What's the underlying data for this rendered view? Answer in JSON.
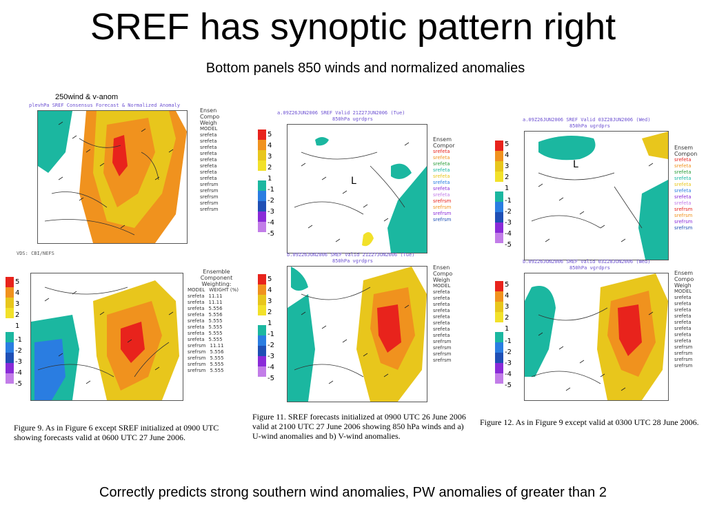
{
  "slide": {
    "title": "SREF has synoptic pattern right",
    "subtitle": "Bottom panels 850 winds and normalized anomalies",
    "footer": "Correctly predicts strong southern wind anomalies, PW anomalies of greater than 2"
  },
  "colors": {
    "red": "#e8231c",
    "orange": "#f0921e",
    "gold": "#e8c61c",
    "yellow": "#f2e12a",
    "cyan": "#1bb7a0",
    "blue": "#2a7de1",
    "navy": "#1f4fb5",
    "purple": "#8a2bd8",
    "violet": "#c27de8",
    "map_bg": "#ffffff",
    "map_line": "#333333"
  },
  "left_panel": {
    "label": "250wind & v-anom",
    "top_title": "plevhPa SREF Consensus Forecast & Normalized Anomaly",
    "top_legend_header": [
      "Ensen",
      "Compo",
      "Weigh"
    ],
    "top_legend_models": [
      "MODEL",
      "srefeta",
      "srefeta",
      "srefeta",
      "srefeta",
      "srefeta",
      "srefeta",
      "srefeta",
      "srefeta",
      "srefrsm",
      "srefrsm",
      "srefrsm",
      "srefrsm",
      "srefrsm"
    ],
    "top_credit": "VDS: CBI/NEFS",
    "bottom_legend_header": [
      "Ensemble",
      "Component",
      "Weighting:"
    ],
    "bottom_legend_cols": [
      "MODEL",
      "WEIGHT (%)"
    ],
    "bottom_legend_rows": [
      [
        "srefeta",
        "11.11"
      ],
      [
        "srefeta",
        "11.11"
      ],
      [
        "srefeta",
        "5.556"
      ],
      [
        "srefeta",
        "5.556"
      ],
      [
        "srefeta",
        "5.555"
      ],
      [
        "srefeta",
        "5.555"
      ],
      [
        "srefeta",
        "5.555"
      ],
      [
        "srefeta",
        "5.555"
      ],
      [
        "srefrsm",
        "11.11"
      ],
      [
        "srefrsm",
        "5.556"
      ],
      [
        "srefrsm",
        "5.555"
      ],
      [
        "srefrsm",
        "5.555"
      ],
      [
        "srefrsm",
        "5.555"
      ]
    ],
    "caption": "Figure 9. As in Figure 6 except SREF initialized at 0900 UTC showing forecasts valid at 0600 UTC 27 June 2006."
  },
  "middle_panel": {
    "top_title_1": "a.09Z26JUN2006 SREF Valid 21Z27JUN2006 (Tue)",
    "top_title_2": "850hPa ugrdprs",
    "bottom_title_1": "b.09Z26JUN2006 SREF Valid 21Z27JUN2006 (Tue)",
    "bottom_title_2": "850hPa vgrdprs",
    "legend_header": [
      "Ensem",
      "Compor"
    ],
    "legend_header_bottom": [
      "Ensen",
      "Compo",
      "Weigh"
    ],
    "legend_models": [
      "srefeta",
      "srefeta",
      "srefeta",
      "srefeta",
      "srefeta",
      "srefeta",
      "srefeta",
      "srefeta",
      "srefrsm",
      "srefrsm",
      "srefrsm",
      "srefrsm"
    ],
    "legend_models_bottom": [
      "MODEL",
      "srefeta",
      "srefeta",
      "srefeta",
      "srefeta",
      "srefeta",
      "srefeta",
      "srefeta",
      "srefeta",
      "srefrsm",
      "srefrsm",
      "srefrsm",
      "srefrsm"
    ],
    "low_marker": "L",
    "caption": "Figure 11. SREF forecasts initialized at 0900 UTC 26 June 2006 valid at 2100 UTC 27 June 2006 showing 850 hPa winds and a) U-wind anomalies and b) V-wind anomalies."
  },
  "right_panel": {
    "top_title_1": "a.09Z26JUN2006 SREF Valid 03Z28JUN2006 (Wed)",
    "top_title_2": "850hPa ugrdprs",
    "bottom_title_1": "b.09Z26JUN2006 SREF Valid 03Z28JUN2006 (Wed)",
    "bottom_title_2": "850hPa vgrdprs",
    "legend_header": [
      "Ensem",
      "Compon"
    ],
    "legend_header_bottom": [
      "Ensem",
      "Compo",
      "Weigh"
    ],
    "legend_models": [
      "srefeta",
      "srefeta",
      "srefeta",
      "srefeta",
      "srefeta",
      "srefeta",
      "srefeta",
      "srefeta",
      "srefrsm",
      "srefrsm",
      "srefrsm",
      "srefrsm"
    ],
    "legend_models_bottom": [
      "MODEL",
      "srefeta",
      "srefeta",
      "srefeta",
      "srefeta",
      "srefeta",
      "srefeta",
      "srefeta",
      "srefeta",
      "srefrsm",
      "srefrsm",
      "srefrsm",
      "srefrsm"
    ],
    "low_marker": "L",
    "caption": "Figure 12. As in Figure 9 except valid at 0300 UTC 28 June 2006."
  },
  "colorbar_labels": [
    "5",
    "4",
    "3",
    "2",
    "1",
    "-1",
    "-2",
    "-3",
    "-4",
    "-5"
  ]
}
